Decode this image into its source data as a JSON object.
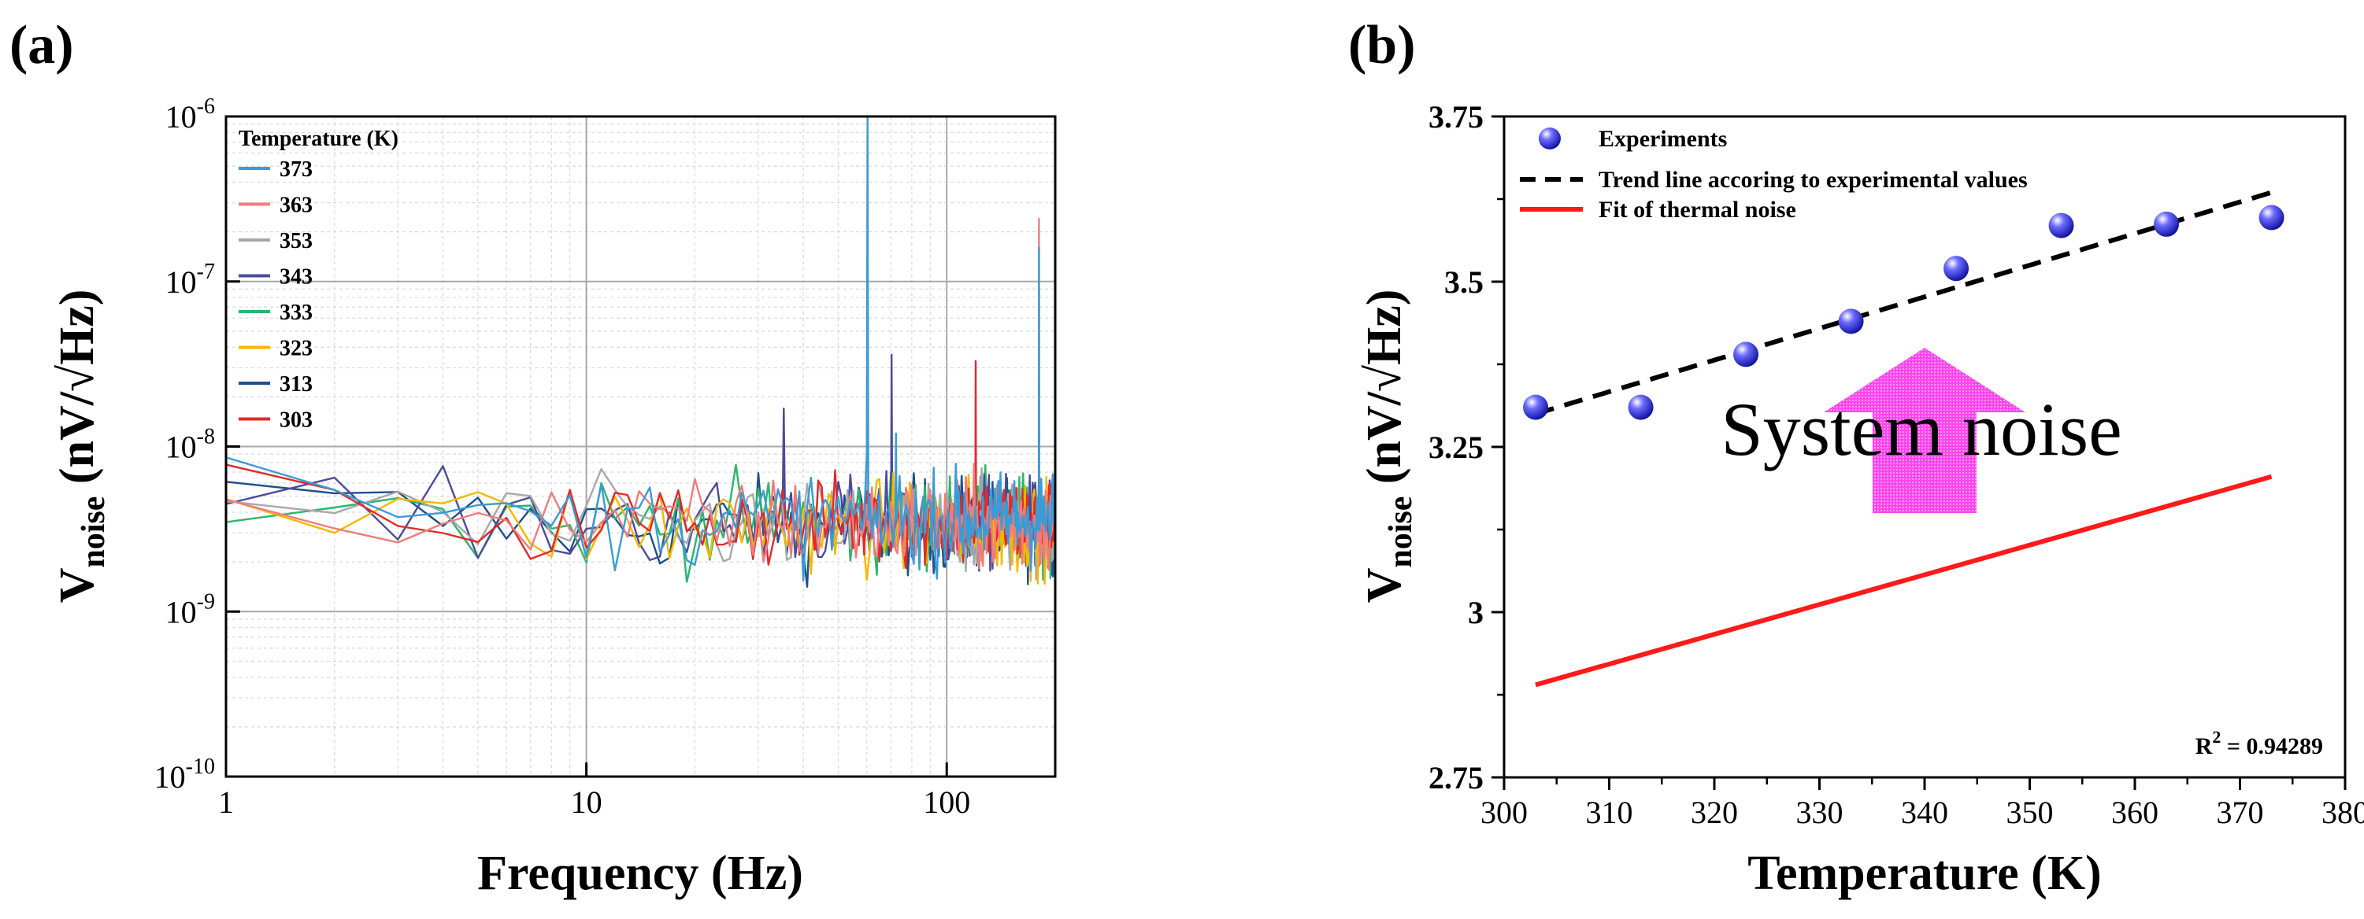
{
  "chart_data": [
    {
      "panel": "(a)",
      "type": "line",
      "xscale": "log",
      "yscale": "log",
      "xlim": [
        1,
        200
      ],
      "ylim": [
        1e-10,
        1e-06
      ],
      "xlabel": "Frequency (Hz)",
      "ylabel_main": "V",
      "ylabel_sub": "noise",
      "ylabel_unit": " (nV/√Hz)",
      "xticks": [
        {
          "value": 1,
          "label": "1"
        },
        {
          "value": 10,
          "label": "10"
        },
        {
          "value": 100,
          "label": "100"
        }
      ],
      "yticks": [
        {
          "value": 1e-10,
          "base": "10",
          "exp": "-10"
        },
        {
          "value": 1e-09,
          "base": "10",
          "exp": "-9"
        },
        {
          "value": 1e-08,
          "base": "10",
          "exp": "-8"
        },
        {
          "value": 1e-07,
          "base": "10",
          "exp": "-7"
        },
        {
          "value": 1e-06,
          "base": "10",
          "exp": "-6"
        }
      ],
      "grid": true,
      "legend_title": "Temperature (K)",
      "series": [
        {
          "name": "373",
          "color": "#3b9bd6",
          "baseline": 3.6e-09,
          "spikes": [
            {
              "x": 60,
              "y": 1e-06
            },
            {
              "x": 180,
              "y": 1.6e-07
            },
            {
              "x": 72,
              "y": 1.2e-08
            }
          ]
        },
        {
          "name": "363",
          "color": "#f07c7c",
          "baseline": 3.4e-09,
          "spikes": [
            {
              "x": 180,
              "y": 2.4e-07
            }
          ]
        },
        {
          "name": "353",
          "color": "#a8a8a8",
          "baseline": 3.3e-09,
          "spikes": [
            {
              "x": 60,
              "y": 2e-08
            }
          ]
        },
        {
          "name": "343",
          "color": "#4b4b9c",
          "baseline": 3.4e-09,
          "spikes": [
            {
              "x": 35,
              "y": 1.7e-08
            },
            {
              "x": 70,
              "y": 3.6e-08
            }
          ]
        },
        {
          "name": "333",
          "color": "#28b86a",
          "baseline": 3.5e-09,
          "spikes": []
        },
        {
          "name": "323",
          "color": "#f5b800",
          "baseline": 3.3e-09,
          "spikes": []
        },
        {
          "name": "313",
          "color": "#1f4e8c",
          "baseline": 3.3e-09,
          "spikes": []
        },
        {
          "name": "303",
          "color": "#e52929",
          "baseline": 3.5e-09,
          "spikes": [
            {
              "x": 120,
              "y": 3.3e-08
            }
          ]
        }
      ]
    },
    {
      "panel": "(b)",
      "type": "scatter",
      "xlim": [
        300,
        380
      ],
      "ylim": [
        2.75,
        3.75
      ],
      "xlabel": "Temperature (K)",
      "ylabel_main": "V",
      "ylabel_sub": "noise",
      "ylabel_unit": " (nV/√Hz)",
      "xticks": [
        300,
        310,
        320,
        330,
        340,
        350,
        360,
        370,
        380
      ],
      "yticks": [
        {
          "value": 2.75,
          "label": "2.75"
        },
        {
          "value": 3,
          "label": "3"
        },
        {
          "value": 3.25,
          "label": "3.25"
        },
        {
          "value": 3.5,
          "label": "3.5"
        },
        {
          "value": 3.75,
          "label": "3.75"
        }
      ],
      "grid": false,
      "series": [
        {
          "name": "Experiments",
          "kind": "scatter",
          "color": "#2020e0",
          "x": [
            303,
            313,
            323,
            333,
            343,
            353,
            363,
            373
          ],
          "y": [
            3.31,
            3.31,
            3.39,
            3.44,
            3.52,
            3.585,
            3.587,
            3.597
          ]
        },
        {
          "name": "Trend line accoring to experimental values",
          "kind": "line",
          "style": "dashed",
          "color": "#000000",
          "x": [
            303,
            373
          ],
          "y": [
            3.3,
            3.635
          ]
        },
        {
          "name": "Fit of thermal noise",
          "kind": "line",
          "style": "solid",
          "color": "#ff1a1a",
          "x": [
            303,
            373
          ],
          "y": [
            2.89,
            3.205
          ]
        }
      ],
      "annotations": {
        "system_noise_text": "System noise",
        "arrow_color": "#ff44ee",
        "arrow_from_temp": 340,
        "arrow_y_from": 3.15,
        "arrow_y_to": 3.4,
        "r2_prefix": "R",
        "r2_exp": "2",
        "r2_value": " = 0.94289"
      }
    }
  ]
}
